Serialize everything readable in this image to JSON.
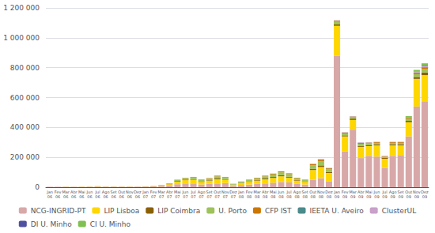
{
  "chart_data": {
    "type": "bar",
    "stacked": true,
    "grid": true,
    "legend": "bottom",
    "categories": [
      "Jan\n06",
      "Fev\n06",
      "Mar\n06",
      "Abr\n06",
      "Mai\n06",
      "Jun\n06",
      "Jul\n06",
      "Ago\n06",
      "Set\n06",
      "Out\n06",
      "Nov\n06",
      "Dez\n06",
      "Jan\n07",
      "Fev\n07",
      "Mar\n07",
      "Abr\n07",
      "Mai\n07",
      "Jun\n07",
      "Jul\n07",
      "Ago\n07",
      "Set\n07",
      "Out\n07",
      "Nov\n07",
      "Dez\n07",
      "Jan\n08",
      "Fev\n08",
      "Mar\n08",
      "Abr\n08",
      "Mai\n08",
      "Jun\n08",
      "Jul\n08",
      "Ago\n08",
      "Set\n08",
      "Out\n08",
      "Nov\n08",
      "Dez\n08",
      "Jan\n09",
      "Fev\n09",
      "Mar\n09",
      "Abr\n09",
      "Mai\n09",
      "Jun\n09",
      "Jul\n09",
      "Ago\n09",
      "Set\n09",
      "Out\n09",
      "Nov\n09",
      "Dez\n09"
    ],
    "ylim": [
      0,
      1200000
    ],
    "yticks": [
      0,
      {
        "value": 200000,
        "label": "200 000"
      },
      {
        "value": 400000,
        "label": "400 000"
      },
      {
        "value": 600000,
        "label": "600 000"
      },
      {
        "value": 800000,
        "label": "800 000"
      },
      {
        "value": 1000000,
        "label": "1 000 000"
      },
      {
        "value": 1200000,
        "label": "1 200 000"
      }
    ],
    "series": [
      {
        "name": "NCG-INGRID-PT",
        "color": "#D8A8A8",
        "values": [
          2000,
          2000,
          2000,
          2000,
          3000,
          3000,
          4000,
          3000,
          3000,
          3000,
          3000,
          3000,
          4000,
          5000,
          8000,
          12000,
          20000,
          25000,
          25000,
          18000,
          22000,
          25000,
          28000,
          8000,
          15000,
          18000,
          22000,
          25000,
          30000,
          35000,
          32000,
          22000,
          18000,
          50000,
          60000,
          40000,
          880000,
          240000,
          385000,
          195000,
          210000,
          205000,
          130000,
          210000,
          215000,
          340000,
          540000,
          575000
        ]
      },
      {
        "name": "LIP Lisboa",
        "color": "#FFD700",
        "values": [
          500,
          500,
          1000,
          500,
          1000,
          1000,
          2000,
          1000,
          1000,
          1000,
          1000,
          500,
          1000,
          2000,
          4000,
          8000,
          18000,
          22000,
          25000,
          18000,
          20000,
          28000,
          22000,
          8000,
          12000,
          18000,
          22000,
          28000,
          32000,
          38000,
          32000,
          22000,
          18000,
          65000,
          75000,
          55000,
          200000,
          100000,
          65000,
          75000,
          65000,
          75000,
          60000,
          70000,
          65000,
          95000,
          185000,
          175000
        ]
      },
      {
        "name": "LIP Coimbra",
        "color": "#8B6000",
        "values": [
          300,
          300,
          300,
          300,
          300,
          300,
          500,
          300,
          300,
          300,
          300,
          300,
          500,
          800,
          1500,
          2500,
          4000,
          4000,
          4500,
          3500,
          4000,
          5500,
          4500,
          1500,
          2500,
          3500,
          4500,
          5500,
          6500,
          7500,
          6500,
          4500,
          3500,
          9000,
          11000,
          7000,
          9000,
          7000,
          9000,
          7000,
          7500,
          7500,
          6500,
          7500,
          7500,
          9000,
          13000,
          18000
        ]
      },
      {
        "name": "U. Porto",
        "color": "#9DC35A",
        "values": [
          0,
          0,
          0,
          0,
          0,
          0,
          0,
          0,
          0,
          0,
          0,
          0,
          0,
          0,
          1500,
          4000,
          7000,
          9000,
          11000,
          9000,
          11000,
          14000,
          11000,
          4000,
          7000,
          9000,
          11000,
          14000,
          17000,
          19000,
          17000,
          11000,
          9000,
          23000,
          28000,
          18000,
          18000,
          13000,
          9000,
          14000,
          11000,
          9000,
          7000,
          9000,
          9000,
          14000,
          18000,
          22000
        ]
      },
      {
        "name": "CFP IST",
        "color": "#CC7700",
        "values": [
          0,
          0,
          0,
          0,
          0,
          0,
          0,
          0,
          0,
          0,
          0,
          0,
          0,
          0,
          0,
          0,
          1500,
          2500,
          3500,
          2500,
          3500,
          4500,
          3500,
          1200,
          1500,
          2500,
          3500,
          4500,
          5500,
          6500,
          5500,
          3500,
          2500,
          7000,
          9000,
          6000,
          7000,
          5000,
          4500,
          5500,
          4500,
          4500,
          3500,
          4500,
          4500,
          6500,
          9000,
          11000
        ]
      },
      {
        "name": "IEETA U. Aveiro",
        "color": "#4B8B8B",
        "values": [
          0,
          0,
          0,
          0,
          0,
          0,
          0,
          0,
          0,
          0,
          0,
          0,
          0,
          0,
          0,
          0,
          0,
          0,
          0,
          0,
          0,
          0,
          0,
          0,
          0,
          0,
          0,
          0,
          0,
          0,
          0,
          0,
          0,
          800,
          1500,
          800,
          900,
          800,
          900,
          900,
          900,
          900,
          800,
          900,
          900,
          1500,
          2500,
          3500
        ]
      },
      {
        "name": "ClusterUL",
        "color": "#C8A0C8",
        "values": [
          0,
          0,
          0,
          0,
          0,
          0,
          0,
          0,
          0,
          0,
          0,
          0,
          0,
          0,
          0,
          0,
          0,
          0,
          0,
          0,
          0,
          0,
          0,
          0,
          0,
          0,
          0,
          0,
          0,
          0,
          0,
          0,
          0,
          2500,
          4500,
          2500,
          2500,
          2000,
          2000,
          2500,
          2000,
          2000,
          1800,
          2000,
          2000,
          3500,
          5500,
          6500
        ]
      },
      {
        "name": "DI U. Minho",
        "color": "#5050A0",
        "values": [
          0,
          0,
          0,
          0,
          0,
          0,
          0,
          0,
          0,
          0,
          0,
          0,
          0,
          0,
          0,
          0,
          0,
          0,
          0,
          0,
          0,
          0,
          0,
          0,
          0,
          0,
          0,
          0,
          0,
          0,
          0,
          0,
          0,
          0,
          0,
          0,
          0,
          0,
          0,
          0,
          0,
          0,
          0,
          0,
          0,
          1000,
          2000,
          3000
        ]
      },
      {
        "name": "CI U. Minho",
        "color": "#80C050",
        "values": [
          0,
          0,
          0,
          0,
          0,
          0,
          0,
          0,
          0,
          0,
          0,
          0,
          0,
          0,
          0,
          0,
          0,
          0,
          0,
          0,
          0,
          0,
          0,
          0,
          0,
          0,
          0,
          0,
          0,
          0,
          0,
          0,
          0,
          0,
          0,
          0,
          0,
          0,
          0,
          0,
          0,
          0,
          0,
          0,
          0,
          5000,
          10000,
          15000
        ]
      }
    ]
  }
}
